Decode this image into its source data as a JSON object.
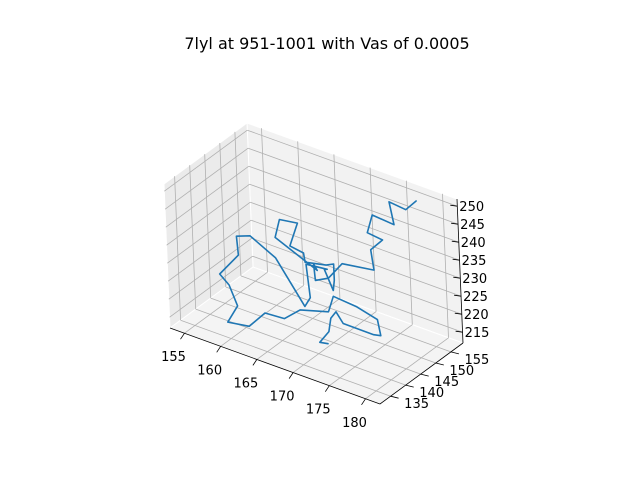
{
  "chart_data": {
    "type": "line3d",
    "title": "7lyl at 951-1001 with Vas of 0.0005",
    "xlabel": "",
    "ylabel": "",
    "zlabel": "",
    "xlim": [
      153,
      182
    ],
    "ylim": [
      131.5,
      159
    ],
    "zlim": [
      212,
      252
    ],
    "x_ticks": [
      "155",
      "160",
      "165",
      "170",
      "175",
      "180"
    ],
    "y_ticks": [
      "135",
      "140",
      "145",
      "150",
      "155"
    ],
    "z_ticks": [
      "215",
      "220",
      "225",
      "230",
      "235",
      "240",
      "245",
      "250"
    ],
    "grid": true,
    "line_color": "#1f77b4",
    "series": [
      {
        "x": [
          178.0,
          176.5,
          174.2,
          175.2,
          172.2,
          171.4,
          173.5,
          172.0,
          173.0,
          169.0,
          167.0,
          165.6,
          165.0,
          165.9,
          160.2,
          160.9,
          163.4,
          163.1,
          165.4,
          166.0,
          169.8,
          171.3,
          171.3,
          171.1,
          170.4,
          170.8,
          168.3,
          168.7,
          167.9,
          163.2,
          159.3,
          157.4,
          158.0,
          155.7,
          157.4,
          158.9,
          158.3,
          161.3,
          162.7,
          165.4,
          167.2,
          170.3,
          170.2,
          173.0,
          175.8,
          177.5,
          177.6,
          173.6,
          173.1,
          173.2,
          173.3,
          172.4,
          173.1
        ],
        "y": [
          155.0,
          155.0,
          155.0,
          154.0,
          154.0,
          154.0,
          154.0,
          153.5,
          152.0,
          151.0,
          151.0,
          150.0,
          151.0,
          150.0,
          150.0,
          150.0,
          150.0,
          148.0,
          147.0,
          146.0,
          144.0,
          143.0,
          143.0,
          143.0,
          142.0,
          142.0,
          141.0,
          141.0,
          141.0,
          143.0,
          144.0,
          144.0,
          143.0,
          142.0,
          141.0,
          140.0,
          138.0,
          138.0,
          140.0,
          140.0,
          141.0,
          143.0,
          145.0,
          146.0,
          146.0,
          143.0,
          140.5,
          140.0,
          139.0,
          137.0,
          136.0,
          135.0,
          136.0
        ],
        "z": [
          251.0,
          247.5,
          248.0,
          243.0,
          243.5,
          238.0,
          237.5,
          234.0,
          230.0,
          229.5,
          224.0,
          223.0,
          226.5,
          226.0,
          231.0,
          236.5,
          237.3,
          232.0,
          232.3,
          230.8,
          234.0,
          236.0,
          231.5,
          228.5,
          234.5,
          234.8,
          235.0,
          226.0,
          223.0,
          231.8,
          234.5,
          233.0,
          228.8,
          222.5,
          221.3,
          217.2,
          213.5,
          214.5,
          218.0,
          218.4,
          221.5,
          222.0,
          225.0,
          223.5,
          222.0,
          220.6,
          222.5,
          223.0,
          226.5,
          226.0,
          223.0,
          220.0,
          219.5
        ]
      }
    ]
  }
}
